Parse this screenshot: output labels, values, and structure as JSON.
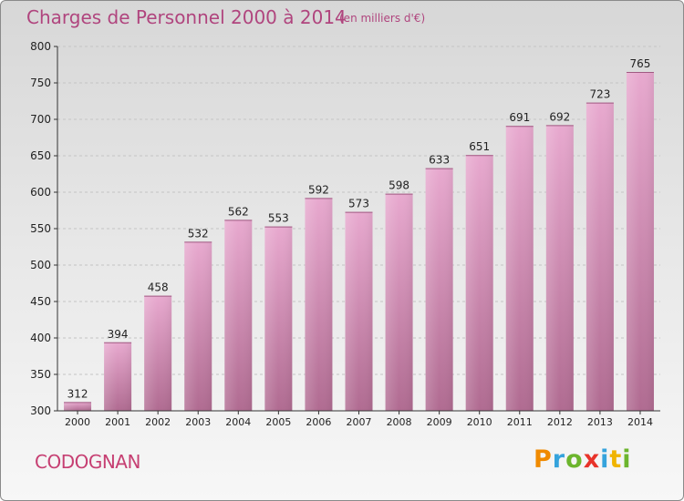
{
  "chart_data": {
    "type": "bar",
    "title": "Charges de Personnel 2000 à 2014",
    "subtitle": "(en milliers d'€)",
    "categories": [
      "2000",
      "2001",
      "2002",
      "2003",
      "2004",
      "2005",
      "2006",
      "2007",
      "2008",
      "2009",
      "2010",
      "2011",
      "2012",
      "2013",
      "2014"
    ],
    "values": [
      312,
      394,
      458,
      532,
      562,
      553,
      592,
      573,
      598,
      633,
      651,
      691,
      692,
      723,
      765
    ],
    "ylim": [
      300,
      800
    ],
    "yticks": [
      300,
      350,
      400,
      450,
      500,
      550,
      600,
      650,
      700,
      750,
      800
    ],
    "xlabel": "",
    "ylabel": "",
    "grid": true,
    "bar_color_top": "#e8a9cf",
    "bar_color_bottom": "#b06b91"
  },
  "commune": "CODOGNAN",
  "logo": {
    "text": "Proxiti",
    "letters": [
      {
        "char": "P",
        "color": "#f08a00"
      },
      {
        "char": "r",
        "color": "#35a3dc"
      },
      {
        "char": "o",
        "color": "#6cb52d"
      },
      {
        "char": "x",
        "color": "#e8332a"
      },
      {
        "char": "i",
        "color": "#35a3dc"
      },
      {
        "char": "t",
        "color": "#f0b400"
      },
      {
        "char": "i",
        "color": "#6cb52d"
      }
    ]
  }
}
